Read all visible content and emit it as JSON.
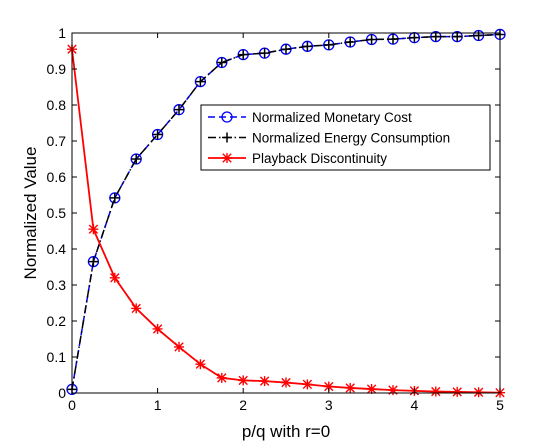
{
  "chart_data": {
    "type": "line",
    "title": "",
    "xlabel": "p/q with r=0",
    "ylabel": "Normalized Value",
    "xlim": [
      0,
      5
    ],
    "ylim": [
      0,
      1
    ],
    "xticks": [
      0,
      1,
      2,
      3,
      4,
      5
    ],
    "yticks": [
      0,
      0.1,
      0.2,
      0.3,
      0.4,
      0.5,
      0.6,
      0.7,
      0.8,
      0.9,
      1
    ],
    "xtick_labels": [
      "0",
      "1",
      "2",
      "3",
      "4",
      "5"
    ],
    "ytick_labels": [
      "0",
      "0.1",
      "0.2",
      "0.3",
      "0.4",
      "0.5",
      "0.6",
      "0.7",
      "0.8",
      "0.9",
      "1"
    ],
    "grid": false,
    "legend_placement": "center-right",
    "x": [
      0,
      0.25,
      0.5,
      0.75,
      1,
      1.25,
      1.5,
      1.75,
      2,
      2.25,
      2.5,
      2.75,
      3,
      3.25,
      3.5,
      3.75,
      4,
      4.25,
      4.5,
      4.75,
      5
    ],
    "series": [
      {
        "name": "Normalized Monetary Cost",
        "color": "#0000ff",
        "dash": "dashed",
        "marker": "circle",
        "values": [
          0.01,
          0.365,
          0.542,
          0.65,
          0.718,
          0.787,
          0.865,
          0.918,
          0.94,
          0.944,
          0.955,
          0.963,
          0.967,
          0.975,
          0.982,
          0.983,
          0.987,
          0.99,
          0.99,
          0.993,
          0.996
        ]
      },
      {
        "name": "Normalized Energy Consumption",
        "color": "#000000",
        "dash": "dashdot",
        "marker": "plus",
        "values": [
          0.01,
          0.365,
          0.542,
          0.65,
          0.718,
          0.787,
          0.865,
          0.918,
          0.94,
          0.944,
          0.955,
          0.963,
          0.967,
          0.975,
          0.982,
          0.983,
          0.987,
          0.99,
          0.99,
          0.993,
          0.996
        ]
      },
      {
        "name": "Playback Discontinuity",
        "color": "#ff0000",
        "dash": "solid",
        "marker": "star",
        "values": [
          0.955,
          0.455,
          0.32,
          0.235,
          0.178,
          0.128,
          0.08,
          0.042,
          0.035,
          0.033,
          0.029,
          0.024,
          0.018,
          0.014,
          0.011,
          0.008,
          0.006,
          0.004,
          0.003,
          0.002,
          0.001
        ]
      }
    ]
  }
}
